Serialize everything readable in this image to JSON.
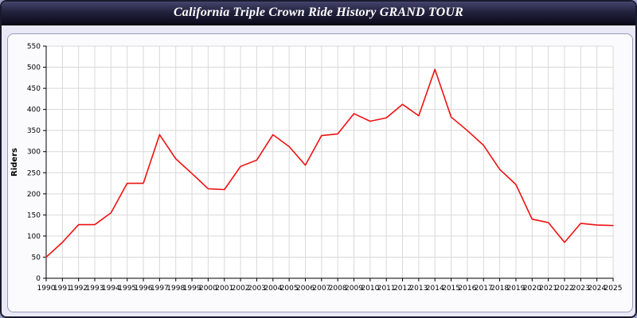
{
  "header": {
    "title": "California Triple Crown Ride History GRAND TOUR"
  },
  "chart_data": {
    "type": "line",
    "title": "California Triple Crown Ride History GRAND TOUR",
    "xlabel": "",
    "ylabel": "Riders",
    "ylim": [
      0,
      550
    ],
    "ytick_step": 50,
    "yticks": [
      0,
      50,
      100,
      150,
      200,
      250,
      300,
      350,
      400,
      450,
      500,
      550
    ],
    "grid": true,
    "legend": "none",
    "line_color": "#ee1111",
    "x": [
      1990,
      1991,
      1992,
      1993,
      1994,
      1995,
      1996,
      1997,
      1998,
      1999,
      2000,
      2001,
      2002,
      2003,
      2004,
      2005,
      2006,
      2007,
      2008,
      2009,
      2010,
      2011,
      2012,
      2013,
      2014,
      2015,
      2016,
      2017,
      2018,
      2019,
      2020,
      2021,
      2022,
      2023,
      2024,
      2025
    ],
    "values": [
      50,
      85,
      127,
      127,
      155,
      225,
      225,
      340,
      283,
      248,
      212,
      210,
      265,
      280,
      340,
      312,
      268,
      338,
      342,
      390,
      372,
      380,
      412,
      385,
      495,
      382,
      350,
      315,
      258,
      222,
      140,
      132,
      85,
      130,
      126,
      125
    ]
  }
}
